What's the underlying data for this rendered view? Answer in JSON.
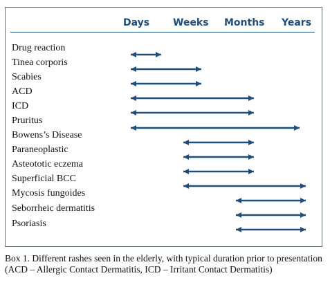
{
  "columns": [
    "Days",
    "Weeks",
    "Months",
    "Years"
  ],
  "rows": [
    {
      "label": "Drug reaction",
      "from": "Days",
      "to": "Weeks"
    },
    {
      "label": "Tinea corporis",
      "from": "Days",
      "to": "Weeks"
    },
    {
      "label": "Scabies",
      "from": "Days",
      "to": "Weeks"
    },
    {
      "label": "ACD",
      "from": "Days",
      "to": "Months"
    },
    {
      "label": "ICD",
      "from": "Days",
      "to": "Months"
    },
    {
      "label": "Pruritus",
      "from": "Days",
      "to": "Years"
    },
    {
      "label": "Bowens’s Disease",
      "from": null,
      "to": null
    },
    {
      "label": "Paraneoplastic",
      "from": "Weeks",
      "to": "Months"
    },
    {
      "label": "Asteototic eczema",
      "from": "Weeks",
      "to": "Months"
    },
    {
      "label": "Superficial BCC",
      "from": "Weeks",
      "to": "Months"
    },
    {
      "label": "Mycosis fungoides",
      "from": "Weeks",
      "to": "Years"
    },
    {
      "label": "Seborrheic dermatitis",
      "from": "Months",
      "to": "Years"
    },
    {
      "label": "Psoriasis",
      "from": "Months",
      "to": "Years"
    }
  ],
  "caption": "Box 1. Different rashes seen in the elderly, with typical duration prior to presentation (ACD – Allergic Contact Dermatitis, ICD – Irritant Contact Dermatitis)",
  "colors": {
    "accent": "#1f4e7a",
    "arrow": "#1f4e7a",
    "border": "#5a7183"
  }
}
